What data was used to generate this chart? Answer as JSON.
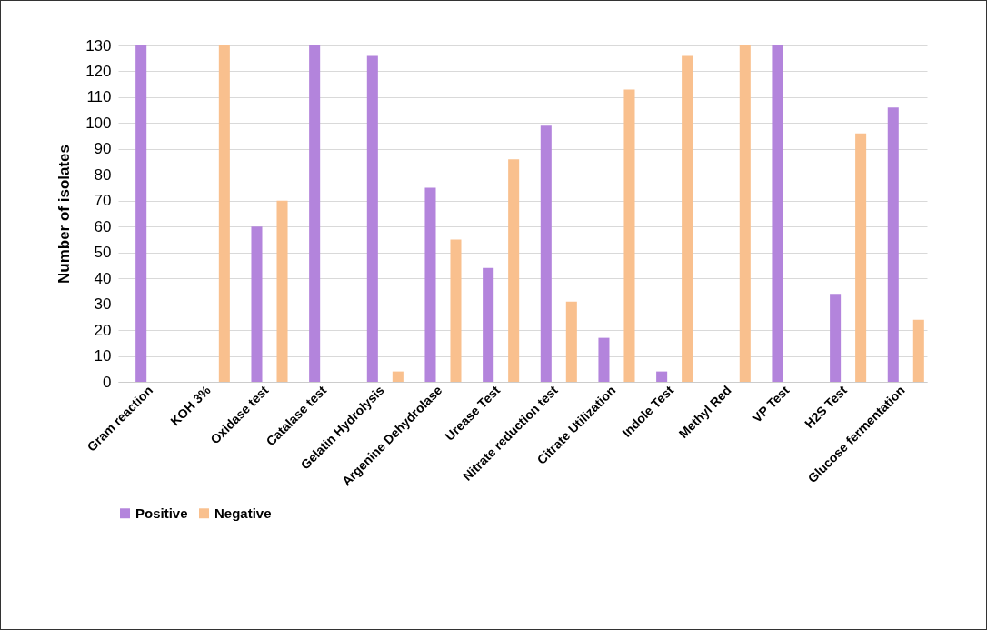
{
  "chart_data": {
    "type": "bar",
    "ylabel": "Number of isolates",
    "categories": [
      "Gram reaction",
      "KOH 3%",
      "Oxidase test",
      "Catalase test",
      "Gelatin Hydrolysis",
      "Argenine Dehydrolase",
      "Urease Test",
      "Nitrate reduction test",
      "Citrate Utilization",
      "Indole Test",
      "Methyl Red",
      "VP Test",
      "H2S Test",
      "Glucose fermentation"
    ],
    "series": [
      {
        "name": "Positive",
        "color": "#b384dc",
        "values": [
          130,
          0,
          60,
          130,
          126,
          75,
          44,
          99,
          17,
          4,
          0,
          130,
          34,
          106
        ]
      },
      {
        "name": "Negative",
        "color": "#f9c08e",
        "values": [
          0,
          130,
          70,
          0,
          4,
          55,
          86,
          31,
          113,
          126,
          130,
          0,
          96,
          24
        ]
      }
    ],
    "ylim": [
      0,
      130
    ],
    "yticks": [
      0,
      10,
      20,
      30,
      40,
      50,
      60,
      70,
      80,
      90,
      100,
      110,
      120,
      130
    ],
    "grid": "y",
    "legend": "bottom"
  }
}
